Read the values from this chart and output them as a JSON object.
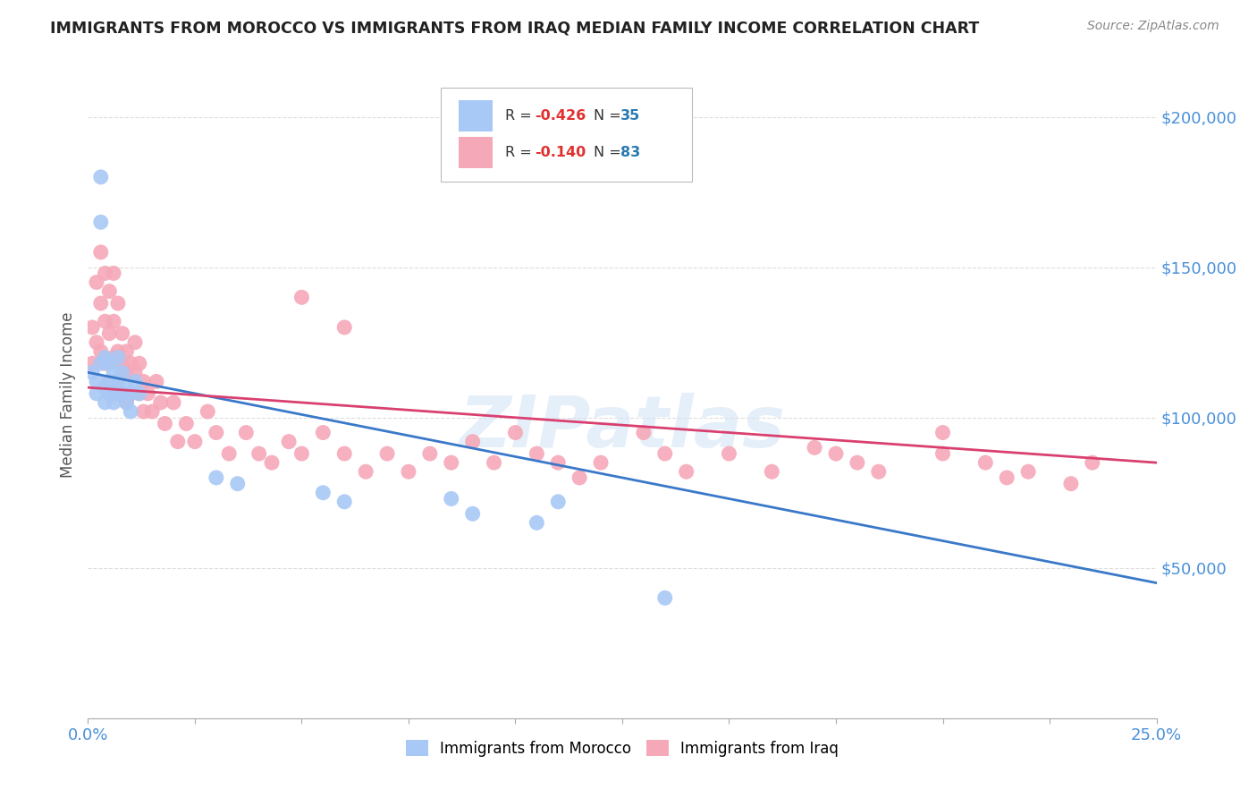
{
  "title": "IMMIGRANTS FROM MOROCCO VS IMMIGRANTS FROM IRAQ MEDIAN FAMILY INCOME CORRELATION CHART",
  "source": "Source: ZipAtlas.com",
  "ylabel": "Median Family Income",
  "yticks": [
    0,
    50000,
    100000,
    150000,
    200000
  ],
  "ytick_labels": [
    "",
    "$50,000",
    "$100,000",
    "$150,000",
    "$200,000"
  ],
  "xmin": 0.0,
  "xmax": 0.25,
  "ymin": 0,
  "ymax": 215000,
  "watermark": "ZIPatlas",
  "legend_r_values": [
    "-0.426",
    "-0.140"
  ],
  "legend_n_values": [
    "35",
    "83"
  ],
  "morocco_color": "#a8c8f5",
  "iraq_color": "#f5a8b8",
  "morocco_line_color": "#3a78c9",
  "iraq_line_color": "#d94070",
  "morocco_x": [
    0.001,
    0.002,
    0.002,
    0.003,
    0.003,
    0.003,
    0.004,
    0.004,
    0.004,
    0.005,
    0.005,
    0.005,
    0.006,
    0.006,
    0.006,
    0.007,
    0.007,
    0.007,
    0.008,
    0.008,
    0.009,
    0.009,
    0.01,
    0.01,
    0.011,
    0.012,
    0.03,
    0.035,
    0.055,
    0.06,
    0.085,
    0.09,
    0.105,
    0.11,
    0.135
  ],
  "morocco_y": [
    115000,
    112000,
    108000,
    180000,
    165000,
    118000,
    120000,
    110000,
    105000,
    118000,
    112000,
    108000,
    115000,
    110000,
    105000,
    120000,
    112000,
    108000,
    115000,
    108000,
    110000,
    105000,
    108000,
    102000,
    112000,
    108000,
    80000,
    78000,
    75000,
    72000,
    73000,
    68000,
    65000,
    72000,
    40000
  ],
  "iraq_x": [
    0.001,
    0.001,
    0.002,
    0.002,
    0.003,
    0.003,
    0.003,
    0.004,
    0.004,
    0.004,
    0.005,
    0.005,
    0.005,
    0.006,
    0.006,
    0.006,
    0.006,
    0.007,
    0.007,
    0.007,
    0.008,
    0.008,
    0.008,
    0.009,
    0.009,
    0.009,
    0.01,
    0.01,
    0.011,
    0.011,
    0.012,
    0.012,
    0.013,
    0.013,
    0.014,
    0.015,
    0.016,
    0.017,
    0.018,
    0.02,
    0.021,
    0.023,
    0.025,
    0.028,
    0.03,
    0.033,
    0.037,
    0.04,
    0.043,
    0.047,
    0.05,
    0.055,
    0.06,
    0.065,
    0.07,
    0.075,
    0.08,
    0.085,
    0.09,
    0.095,
    0.1,
    0.105,
    0.11,
    0.115,
    0.12,
    0.13,
    0.135,
    0.14,
    0.15,
    0.16,
    0.17,
    0.175,
    0.18,
    0.185,
    0.2,
    0.21,
    0.215,
    0.22,
    0.23,
    0.235,
    0.05,
    0.06,
    0.2
  ],
  "iraq_y": [
    130000,
    118000,
    145000,
    125000,
    155000,
    138000,
    122000,
    148000,
    132000,
    118000,
    142000,
    128000,
    112000,
    148000,
    132000,
    120000,
    108000,
    138000,
    122000,
    112000,
    128000,
    118000,
    108000,
    122000,
    115000,
    105000,
    118000,
    108000,
    125000,
    115000,
    118000,
    108000,
    112000,
    102000,
    108000,
    102000,
    112000,
    105000,
    98000,
    105000,
    92000,
    98000,
    92000,
    102000,
    95000,
    88000,
    95000,
    88000,
    85000,
    92000,
    88000,
    95000,
    88000,
    82000,
    88000,
    82000,
    88000,
    85000,
    92000,
    85000,
    95000,
    88000,
    85000,
    80000,
    85000,
    95000,
    88000,
    82000,
    88000,
    82000,
    90000,
    88000,
    85000,
    82000,
    88000,
    85000,
    80000,
    82000,
    78000,
    85000,
    140000,
    130000,
    95000
  ]
}
